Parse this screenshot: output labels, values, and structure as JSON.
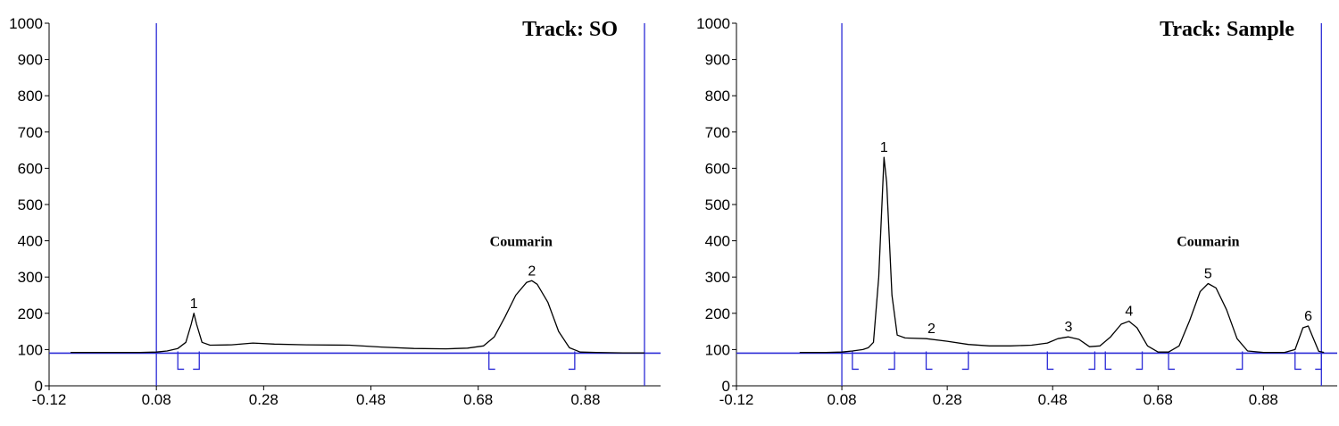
{
  "chart_data": [
    {
      "type": "line",
      "title": "Track: SO",
      "xlabel": "",
      "ylabel": "",
      "xlim": [
        -0.12,
        1.02
      ],
      "ylim": [
        0,
        1000
      ],
      "x_ticks": [
        "-0.12",
        "0.08",
        "0.28",
        "0.48",
        "0.68",
        "0.88"
      ],
      "x_tick_values": [
        -0.12,
        0.08,
        0.28,
        0.48,
        0.68,
        0.88
      ],
      "y_ticks": [
        "0",
        "100",
        "200",
        "300",
        "400",
        "500",
        "600",
        "700",
        "800",
        "900",
        "1000"
      ],
      "y_tick_values": [
        0,
        100,
        200,
        300,
        400,
        500,
        600,
        700,
        800,
        900,
        1000
      ],
      "baseline": 90,
      "front_lines": [
        0.08,
        0.99
      ],
      "grid": false,
      "series": [
        {
          "values": [
            [
              -0.08,
              92
            ],
            [
              0.05,
              92
            ],
            [
              0.08,
              93
            ],
            [
              0.1,
              96
            ],
            [
              0.12,
              103
            ],
            [
              0.135,
              120
            ],
            [
              0.145,
              170
            ],
            [
              0.15,
              200
            ],
            [
              0.155,
              170
            ],
            [
              0.165,
              120
            ],
            [
              0.18,
              112
            ],
            [
              0.22,
              113
            ],
            [
              0.26,
              118
            ],
            [
              0.3,
              115
            ],
            [
              0.36,
              113
            ],
            [
              0.44,
              112
            ],
            [
              0.5,
              107
            ],
            [
              0.56,
              103
            ],
            [
              0.62,
              102
            ],
            [
              0.66,
              104
            ],
            [
              0.69,
              110
            ],
            [
              0.71,
              135
            ],
            [
              0.73,
              190
            ],
            [
              0.75,
              250
            ],
            [
              0.77,
              285
            ],
            [
              0.78,
              290
            ],
            [
              0.79,
              280
            ],
            [
              0.81,
              230
            ],
            [
              0.83,
              150
            ],
            [
              0.85,
              105
            ],
            [
              0.87,
              93
            ],
            [
              0.9,
              92
            ],
            [
              0.95,
              91
            ],
            [
              0.99,
              91
            ]
          ]
        }
      ],
      "peaks": [
        {
          "label": "1",
          "x": 0.15,
          "y": 200
        },
        {
          "label": "2",
          "x": 0.78,
          "y": 290
        }
      ],
      "integration_marks": [
        0.12,
        0.16,
        0.7,
        0.86
      ],
      "annotations": [
        {
          "text": "Coumarin",
          "x": 0.76,
          "y": 385
        }
      ]
    },
    {
      "type": "line",
      "title": "Track: Sample",
      "xlabel": "",
      "ylabel": "",
      "xlim": [
        -0.12,
        1.02
      ],
      "ylim": [
        0,
        1000
      ],
      "x_ticks": [
        "-0.12",
        "0.08",
        "0.28",
        "0.48",
        "0.68",
        "0.88"
      ],
      "x_tick_values": [
        -0.12,
        0.08,
        0.28,
        0.48,
        0.68,
        0.88
      ],
      "y_ticks": [
        "0",
        "100",
        "200",
        "300",
        "400",
        "500",
        "600",
        "700",
        "800",
        "900",
        "1000"
      ],
      "y_tick_values": [
        0,
        100,
        200,
        300,
        400,
        500,
        600,
        700,
        800,
        900,
        1000
      ],
      "baseline": 90,
      "front_lines": [
        0.08,
        0.99
      ],
      "grid": false,
      "series": [
        {
          "values": [
            [
              0.0,
              92
            ],
            [
              0.05,
              92
            ],
            [
              0.08,
              93
            ],
            [
              0.1,
              96
            ],
            [
              0.12,
              100
            ],
            [
              0.13,
              105
            ],
            [
              0.14,
              120
            ],
            [
              0.15,
              300
            ],
            [
              0.16,
              630
            ],
            [
              0.165,
              560
            ],
            [
              0.175,
              250
            ],
            [
              0.185,
              140
            ],
            [
              0.2,
              132
            ],
            [
              0.24,
              130
            ],
            [
              0.28,
              123
            ],
            [
              0.32,
              114
            ],
            [
              0.36,
              110
            ],
            [
              0.4,
              110
            ],
            [
              0.44,
              112
            ],
            [
              0.47,
              118
            ],
            [
              0.49,
              130
            ],
            [
              0.51,
              135
            ],
            [
              0.53,
              128
            ],
            [
              0.55,
              108
            ],
            [
              0.57,
              110
            ],
            [
              0.59,
              135
            ],
            [
              0.61,
              170
            ],
            [
              0.625,
              178
            ],
            [
              0.64,
              160
            ],
            [
              0.66,
              110
            ],
            [
              0.68,
              93
            ],
            [
              0.7,
              93
            ],
            [
              0.72,
              110
            ],
            [
              0.74,
              180
            ],
            [
              0.76,
              260
            ],
            [
              0.775,
              282
            ],
            [
              0.79,
              270
            ],
            [
              0.81,
              210
            ],
            [
              0.83,
              130
            ],
            [
              0.85,
              96
            ],
            [
              0.88,
              92
            ],
            [
              0.92,
              92
            ],
            [
              0.94,
              100
            ],
            [
              0.955,
              160
            ],
            [
              0.965,
              165
            ],
            [
              0.975,
              130
            ],
            [
              0.985,
              95
            ],
            [
              0.995,
              92
            ]
          ]
        }
      ],
      "peaks": [
        {
          "label": "1",
          "x": 0.16,
          "y": 630
        },
        {
          "label": "2",
          "x": 0.25,
          "y": 130
        },
        {
          "label": "3",
          "x": 0.51,
          "y": 135
        },
        {
          "label": "4",
          "x": 0.625,
          "y": 178
        },
        {
          "label": "5",
          "x": 0.775,
          "y": 282
        },
        {
          "label": "6",
          "x": 0.965,
          "y": 165
        }
      ],
      "integration_marks": [
        0.1,
        0.18,
        0.24,
        0.32,
        0.47,
        0.56,
        0.58,
        0.65,
        0.7,
        0.84,
        0.94,
        0.99
      ],
      "annotations": [
        {
          "text": "Coumarin",
          "x": 0.775,
          "y": 385
        }
      ]
    }
  ]
}
